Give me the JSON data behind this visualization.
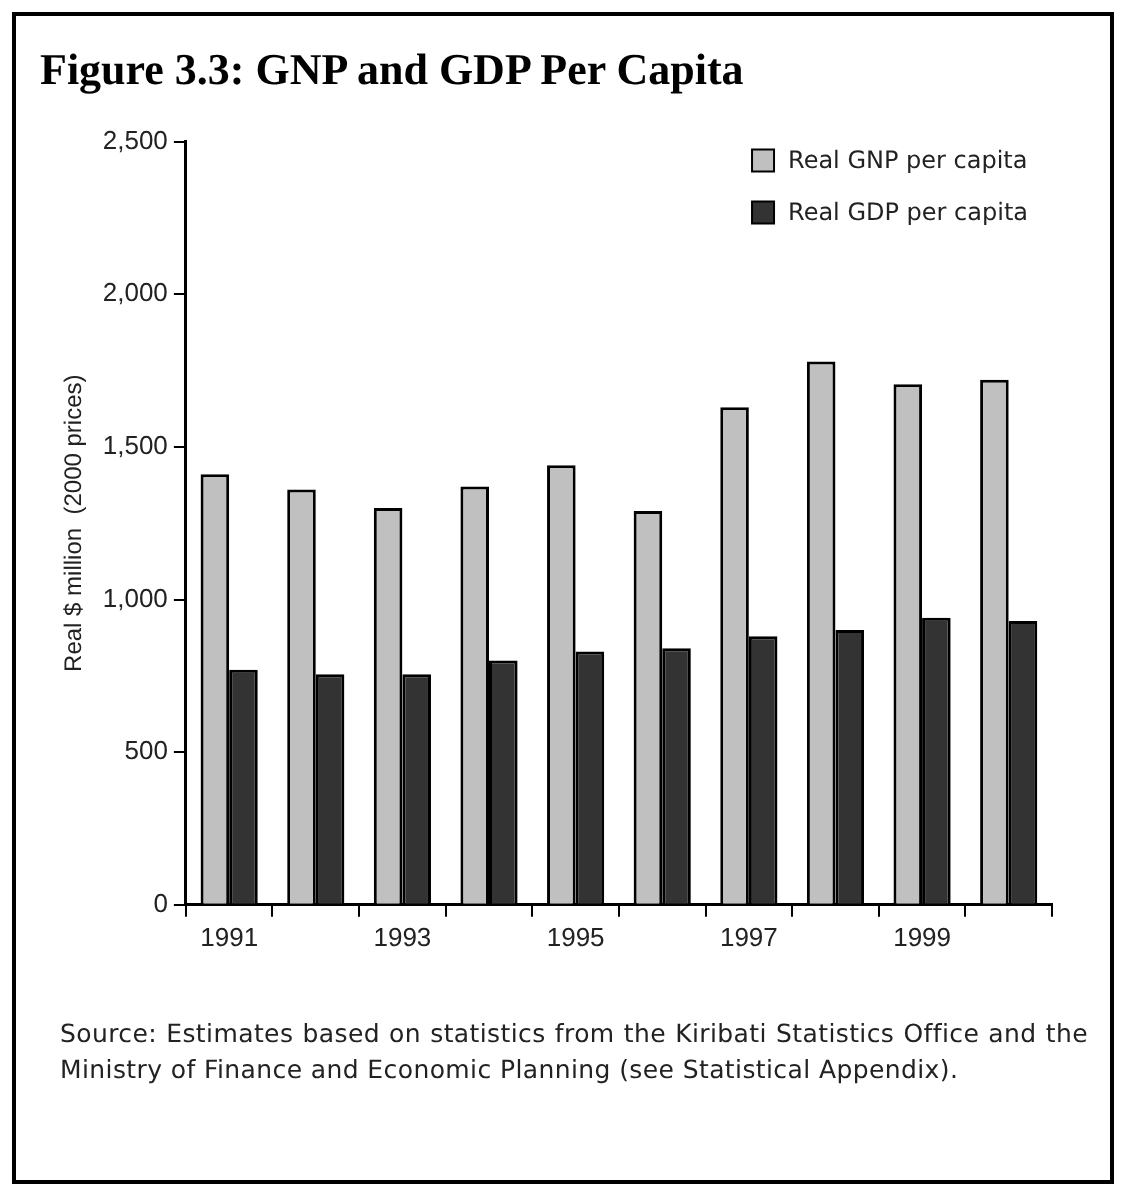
{
  "chart_data": {
    "type": "bar",
    "title": "Figure 3.3: GNP and GDP Per Capita",
    "ylabel": "Real $ million  (2000 prices)",
    "categories": [
      "1991",
      null,
      "1993",
      null,
      "1995",
      null,
      "1997",
      null,
      "1999",
      null
    ],
    "series": [
      {
        "name": "Real GNP per capita",
        "color": "#c0c0c0",
        "values": [
          1410,
          1360,
          1300,
          1370,
          1440,
          1290,
          1630,
          1780,
          1705,
          1720
        ]
      },
      {
        "name": "Real GDP per capita",
        "color": "#333333",
        "values": [
          770,
          755,
          755,
          800,
          830,
          840,
          880,
          900,
          940,
          930
        ]
      }
    ],
    "ylim": [
      0,
      2500
    ],
    "yticks": [
      {
        "value": 0,
        "label": "0"
      },
      {
        "value": 500,
        "label": "500"
      },
      {
        "value": 1000,
        "label": "1,000"
      },
      {
        "value": 1500,
        "label": "1,500"
      },
      {
        "value": 2000,
        "label": "2,000"
      },
      {
        "value": 2500,
        "label": "2,500"
      }
    ],
    "grid": false,
    "legend": "top right",
    "annotations": [
      "Source: Estimates based on statistics from the Kiribati Statistics Office and the Ministry of Finance and Economic Planning (see Statistical Appendix)."
    ]
  }
}
